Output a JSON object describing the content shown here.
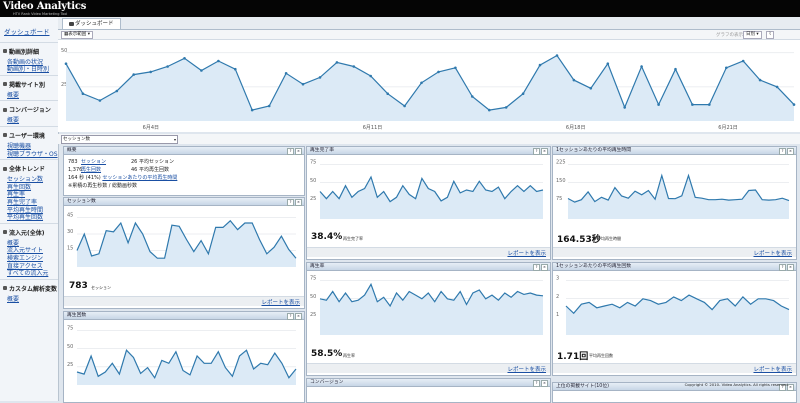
{
  "app": {
    "title": "Video Analytics",
    "subtitle": "HTV Rank Video Marketing Tool"
  },
  "sidebar": {
    "dashboard": "ダッシュボード",
    "sections": [
      {
        "title": "動画別詳細",
        "icon": "film-icon",
        "items": [
          "各動画の状況",
          "動画別・日時別"
        ]
      },
      {
        "title": "掲載サイト別",
        "icon": "page-icon",
        "items": [
          "概要"
        ]
      },
      {
        "title": "コンバージョン",
        "icon": "target-icon",
        "items": [
          "概要"
        ]
      },
      {
        "title": "ユーザー環境",
        "icon": "user-icon",
        "items": [
          "視聴機器",
          "視聴ブラウザ・OS"
        ]
      },
      {
        "title": "全体トレンド",
        "icon": "trend-icon",
        "items": [
          "セッション数",
          "再生回数",
          "再生率",
          "再生完了率",
          "平均再生時間",
          "平均再生回数"
        ]
      },
      {
        "title": "流入元(全体)",
        "icon": "link-icon",
        "items": [
          "概要",
          "流入元サイト",
          "検索エンジン",
          "直接アクセス",
          "すべての流入元"
        ]
      },
      {
        "title": "カスタム解析変数",
        "icon": "custom-icon",
        "items": [
          "概要"
        ]
      }
    ]
  },
  "tabs": {
    "active": "ダッシュボード"
  },
  "toolbar": {
    "display_range": "表示範囲",
    "graph_label": "グラフの表示",
    "graph_value": "日別"
  },
  "main_chart": {
    "x_labels": [
      "6月4日",
      "6月11日",
      "6月18日",
      "6月21日"
    ],
    "y_labels": [
      "50",
      "25"
    ],
    "values": [
      42,
      20,
      15,
      22,
      34,
      36,
      40,
      46,
      37,
      44,
      38,
      8,
      11,
      35,
      27,
      32,
      43,
      40,
      33,
      20,
      11,
      28,
      36,
      39,
      18,
      8,
      10,
      20,
      41,
      48,
      30,
      24,
      42,
      10,
      40,
      12,
      38,
      12,
      12,
      39,
      44,
      30,
      25,
      12
    ],
    "colors": {
      "line": "#2f79ad",
      "fill": "#dceaf6"
    }
  },
  "metric_selector": {
    "value": "セッション数"
  },
  "summary": {
    "title": "概要",
    "rows": [
      {
        "num": "783",
        "link": "セッション",
        "num2": "26",
        "text2": "平均セッション"
      },
      {
        "num": "1,376",
        "link": "再生回数",
        "num2": "46",
        "text2": "平均再生回数"
      }
    ],
    "rate_line_num": "164 秒 (41%)",
    "rate_line_link": "セッションあたりの平均再生時間",
    "rate_line_rest": "",
    "rate_line2": "※累積の再生秒数 / 総動画秒数"
  },
  "panels": {
    "sessions": {
      "title": "セッション数",
      "value": "783",
      "label": "セッション",
      "report": "レポートを表示",
      "y_labels": [
        "45",
        "30",
        "15"
      ],
      "values": [
        15,
        30,
        10,
        12,
        33,
        32,
        40,
        22,
        40,
        30,
        14,
        8,
        8,
        38,
        37,
        25,
        14,
        24,
        12,
        36,
        36,
        42,
        34,
        40,
        40,
        25,
        12,
        18,
        28,
        16,
        8
      ]
    },
    "plays": {
      "title": "再生回数",
      "value": "",
      "label": "",
      "report": "",
      "y_labels": [
        "75",
        "50",
        "25"
      ],
      "values": [
        18,
        15,
        40,
        12,
        18,
        30,
        15,
        48,
        38,
        16,
        24,
        10,
        34,
        30,
        46,
        20,
        14,
        40,
        30,
        30,
        46,
        24,
        12,
        40,
        48,
        22,
        30,
        28,
        44,
        30,
        10,
        22
      ]
    },
    "completion": {
      "title": "再生完了率",
      "value": "38.4%",
      "label": "再生完了率",
      "report": "レポートを表示",
      "y_labels": [
        "75",
        "50",
        "25"
      ],
      "values": [
        38,
        28,
        38,
        28,
        46,
        30,
        38,
        42,
        58,
        30,
        38,
        24,
        30,
        46,
        34,
        28,
        56,
        42,
        38,
        25,
        30,
        52,
        36,
        40,
        38,
        52,
        40,
        38,
        44,
        28,
        38,
        46,
        38,
        46,
        38,
        40
      ]
    },
    "playrate": {
      "title": "再生率",
      "value": "58.5%",
      "label": "再生率",
      "report": "レポートを表示",
      "y_labels": [
        "75",
        "50",
        "25"
      ],
      "values": [
        50,
        48,
        60,
        46,
        58,
        46,
        48,
        55,
        70,
        46,
        52,
        40,
        58,
        48,
        60,
        55,
        50,
        58,
        46,
        60,
        50,
        48,
        60,
        42,
        58,
        62,
        50,
        55,
        48,
        58,
        52,
        60,
        56,
        58,
        55,
        54
      ]
    },
    "conversion": {
      "title": "コンバージョン"
    },
    "avg_time": {
      "title": "1セッションあたりの平均再生時間",
      "value": "164.53秒",
      "label": "平均再生時間",
      "report": "レポートを表示",
      "y_labels": [
        "225",
        "150",
        "75"
      ],
      "values": [
        85,
        70,
        80,
        112,
        72,
        90,
        78,
        130,
        95,
        86,
        115,
        100,
        118,
        82,
        180,
        85,
        84,
        96,
        180,
        90,
        86,
        80,
        80,
        82,
        78,
        80,
        82,
        118,
        120,
        80,
        78,
        80,
        86,
        76
      ]
    },
    "avg_plays": {
      "title": "1セッションあたりの平均再生回数",
      "value": "1.71回",
      "label": "平均再生回数",
      "report": "レポートを表示",
      "y_labels": [
        "3",
        "2",
        "1"
      ],
      "values": [
        1.6,
        1.2,
        1.7,
        1.8,
        1.5,
        1.6,
        1.7,
        1.5,
        1.8,
        1.6,
        2.0,
        1.9,
        1.7,
        1.8,
        2.1,
        1.9,
        2.2,
        2.0,
        1.8,
        1.4,
        1.9,
        2.0,
        1.6,
        2.1,
        1.7,
        2.0,
        2.0,
        1.9,
        1.6,
        1.4
      ]
    },
    "top_sites": {
      "title": "上位の掲載サイト(10位)"
    }
  },
  "footer": {
    "copyright": "Copyright © 2010- Video Analytics. All rights reserved."
  }
}
